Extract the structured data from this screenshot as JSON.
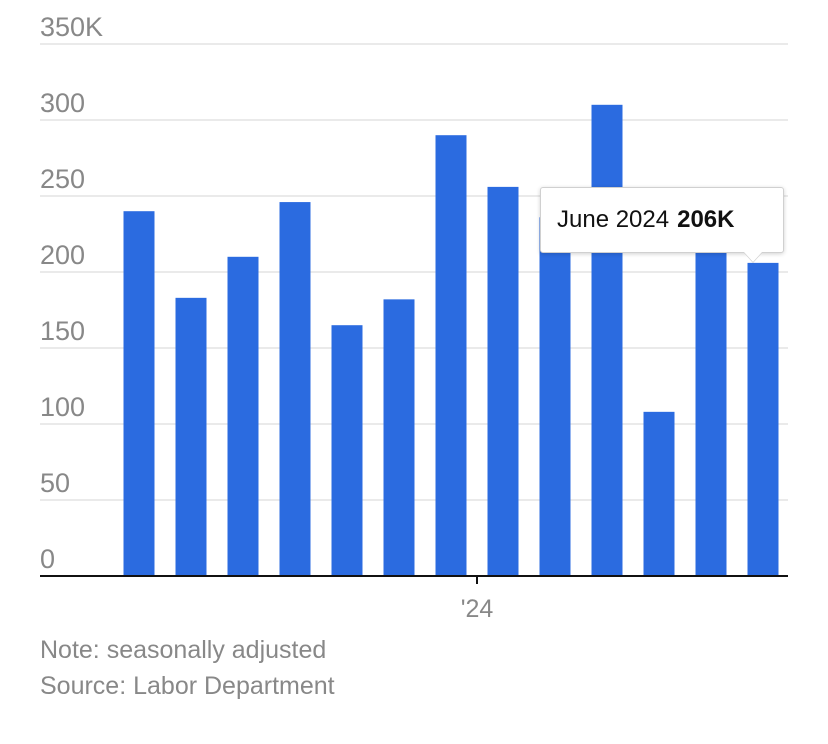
{
  "chart_data": {
    "type": "bar",
    "categories": [
      "",
      "",
      "",
      "",
      "",
      "",
      "",
      "",
      "",
      "",
      "",
      "",
      ""
    ],
    "values": [
      240,
      183,
      210,
      246,
      165,
      182,
      290,
      256,
      236,
      310,
      108,
      218,
      206
    ],
    "y_ticks": [
      "0",
      "50",
      "100",
      "150",
      "200",
      "250",
      "300",
      "350K"
    ],
    "ylim": [
      0,
      350
    ],
    "x_tick_label": "'24",
    "x_tick_index": 7,
    "grid": true,
    "bar_color": "#2b6be0",
    "tooltip": {
      "label": "June 2024",
      "value": "206K",
      "index": 12
    }
  },
  "notes": {
    "note": "Note: seasonally adjusted",
    "source": "Source: Labor Department"
  }
}
